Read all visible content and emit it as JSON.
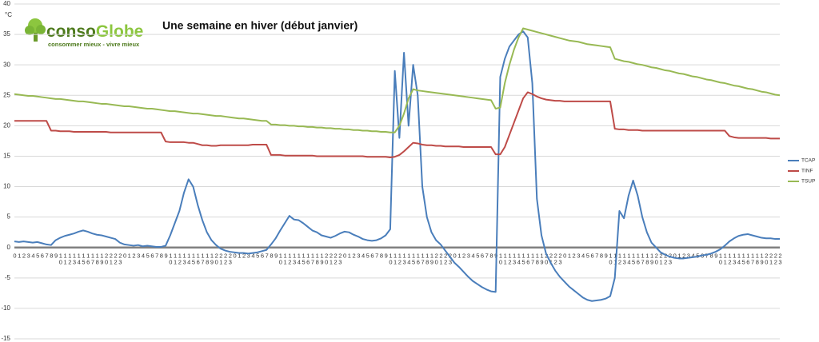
{
  "brand": {
    "name_part1": "conso",
    "name_part2": "Globe",
    "tagline": "consommer mieux - vivre mieux"
  },
  "chart_data": {
    "type": "line",
    "title": "Une semaine en hiver (début janvier)",
    "y_label": "°C",
    "categories": [
      "0",
      "1",
      "2",
      "3",
      "4",
      "5",
      "6",
      "7",
      "8",
      "9",
      "10",
      "11",
      "12",
      "13",
      "14",
      "15",
      "16",
      "17",
      "18",
      "19",
      "20",
      "21",
      "22",
      "23",
      "0",
      "1",
      "2",
      "3",
      "4",
      "5",
      "6",
      "7",
      "8",
      "9",
      "10",
      "11",
      "12",
      "13",
      "14",
      "15",
      "16",
      "17",
      "18",
      "19",
      "20",
      "21",
      "22",
      "23",
      "0",
      "1",
      "2",
      "3",
      "4",
      "5",
      "6",
      "7",
      "8",
      "9",
      "10",
      "11",
      "12",
      "13",
      "14",
      "15",
      "16",
      "17",
      "18",
      "19",
      "20",
      "21",
      "22",
      "23",
      "0",
      "1",
      "2",
      "3",
      "4",
      "5",
      "6",
      "7",
      "8",
      "9",
      "10",
      "11",
      "12",
      "13",
      "14",
      "15",
      "16",
      "17",
      "18",
      "19",
      "20",
      "21",
      "22",
      "23",
      "0",
      "1",
      "2",
      "3",
      "4",
      "5",
      "6",
      "7",
      "8",
      "9",
      "10",
      "11",
      "12",
      "13",
      "14",
      "15",
      "16",
      "17",
      "18",
      "19",
      "20",
      "21",
      "22",
      "23",
      "0",
      "1",
      "2",
      "3",
      "4",
      "5",
      "6",
      "7",
      "8",
      "9",
      "10",
      "11",
      "12",
      "13",
      "14",
      "15",
      "16",
      "17",
      "18",
      "19",
      "20",
      "21",
      "22",
      "23",
      "0",
      "1",
      "2",
      "3",
      "4",
      "5",
      "6",
      "7",
      "8",
      "9",
      "10",
      "11",
      "12",
      "13",
      "14",
      "15",
      "16",
      "17",
      "18",
      "19",
      "20",
      "21",
      "22",
      "23"
    ],
    "series": [
      {
        "name": "TCAP",
        "color": "#4a7ebb",
        "values": [
          1.0,
          0.9,
          1.0,
          0.9,
          0.8,
          0.9,
          0.7,
          0.5,
          0.4,
          1.2,
          1.6,
          1.9,
          2.1,
          2.3,
          2.6,
          2.8,
          2.6,
          2.3,
          2.1,
          2.0,
          1.8,
          1.6,
          1.4,
          0.8,
          0.5,
          0.4,
          0.3,
          0.4,
          0.2,
          0.3,
          0.2,
          0.1,
          0.1,
          0.3,
          2.0,
          4.0,
          6.0,
          9.0,
          11.2,
          10.0,
          7.0,
          4.5,
          2.5,
          1.2,
          0.4,
          -0.2,
          -0.5,
          -0.7,
          -0.8,
          -0.9,
          -0.9,
          -1.0,
          -0.9,
          -0.8,
          -0.6,
          -0.4,
          0.5,
          1.5,
          2.8,
          4.0,
          5.2,
          4.6,
          4.5,
          4.0,
          3.4,
          2.8,
          2.5,
          2.0,
          1.8,
          1.6,
          1.9,
          2.3,
          2.6,
          2.5,
          2.1,
          1.8,
          1.4,
          1.2,
          1.1,
          1.2,
          1.5,
          2.0,
          3.0,
          29.0,
          18.0,
          32.0,
          20.0,
          30.0,
          25.0,
          10.0,
          5.0,
          2.5,
          1.2,
          0.5,
          -0.5,
          -1.5,
          -2.5,
          -3.2,
          -4.0,
          -4.8,
          -5.5,
          -6.0,
          -6.5,
          -6.9,
          -7.2,
          -7.3,
          28.0,
          31.0,
          33.0,
          34.0,
          35.0,
          35.5,
          34.5,
          27.0,
          8.0,
          2.0,
          -1.0,
          -2.5,
          -3.8,
          -4.8,
          -5.6,
          -6.4,
          -7.0,
          -7.6,
          -8.2,
          -8.6,
          -8.8,
          -8.7,
          -8.6,
          -8.4,
          -8.0,
          -5.0,
          6.0,
          4.8,
          8.5,
          11.0,
          8.5,
          5.0,
          2.5,
          0.8,
          0.0,
          -0.8,
          -1.2,
          -1.5,
          -1.7,
          -1.8,
          -1.8,
          -1.7,
          -1.6,
          -1.5,
          -1.3,
          -1.2,
          -1.0,
          -0.7,
          -0.3,
          0.3,
          1.0,
          1.5,
          1.9,
          2.1,
          2.2,
          2.0,
          1.8,
          1.6,
          1.5,
          1.5,
          1.4,
          1.4
        ]
      },
      {
        "name": "TINF",
        "color": "#be4b48",
        "values": [
          20.8,
          20.8,
          20.8,
          20.8,
          20.8,
          20.8,
          20.8,
          20.8,
          19.2,
          19.2,
          19.1,
          19.1,
          19.1,
          19.0,
          19.0,
          19.0,
          19.0,
          19.0,
          19.0,
          19.0,
          19.0,
          18.9,
          18.9,
          18.9,
          18.9,
          18.9,
          18.9,
          18.9,
          18.9,
          18.9,
          18.9,
          18.9,
          18.9,
          17.4,
          17.3,
          17.3,
          17.3,
          17.3,
          17.2,
          17.2,
          17.0,
          16.8,
          16.8,
          16.7,
          16.7,
          16.8,
          16.8,
          16.8,
          16.8,
          16.8,
          16.8,
          16.8,
          16.9,
          16.9,
          16.9,
          16.9,
          15.2,
          15.2,
          15.2,
          15.1,
          15.1,
          15.1,
          15.1,
          15.1,
          15.1,
          15.1,
          15.0,
          15.0,
          15.0,
          15.0,
          15.0,
          15.0,
          15.0,
          15.0,
          15.0,
          15.0,
          15.0,
          14.9,
          14.9,
          14.9,
          14.9,
          14.9,
          14.8,
          14.9,
          15.2,
          15.8,
          16.5,
          17.2,
          17.1,
          16.9,
          16.8,
          16.8,
          16.7,
          16.7,
          16.6,
          16.6,
          16.6,
          16.6,
          16.5,
          16.5,
          16.5,
          16.5,
          16.5,
          16.5,
          16.5,
          15.3,
          15.3,
          16.5,
          18.5,
          20.5,
          22.5,
          24.5,
          25.5,
          25.2,
          24.8,
          24.5,
          24.3,
          24.2,
          24.1,
          24.1,
          24.0,
          24.0,
          24.0,
          24.0,
          24.0,
          24.0,
          24.0,
          24.0,
          24.0,
          24.0,
          24.0,
          19.5,
          19.4,
          19.4,
          19.3,
          19.3,
          19.3,
          19.2,
          19.2,
          19.2,
          19.2,
          19.2,
          19.2,
          19.2,
          19.2,
          19.2,
          19.2,
          19.2,
          19.2,
          19.2,
          19.2,
          19.2,
          19.2,
          19.2,
          19.2,
          19.2,
          18.3,
          18.1,
          18.0,
          18.0,
          18.0,
          18.0,
          18.0,
          18.0,
          18.0,
          17.9,
          17.9,
          17.9
        ]
      },
      {
        "name": "TSUP",
        "color": "#98b954",
        "values": [
          25.2,
          25.1,
          25.0,
          24.9,
          24.9,
          24.8,
          24.7,
          24.6,
          24.5,
          24.4,
          24.4,
          24.3,
          24.2,
          24.1,
          24.0,
          24.0,
          23.9,
          23.8,
          23.7,
          23.6,
          23.6,
          23.5,
          23.4,
          23.3,
          23.2,
          23.2,
          23.1,
          23.0,
          22.9,
          22.8,
          22.8,
          22.7,
          22.6,
          22.5,
          22.4,
          22.4,
          22.3,
          22.2,
          22.1,
          22.0,
          22.0,
          21.9,
          21.8,
          21.7,
          21.6,
          21.6,
          21.5,
          21.4,
          21.3,
          21.2,
          21.2,
          21.1,
          21.0,
          20.9,
          20.8,
          20.8,
          20.2,
          20.2,
          20.1,
          20.1,
          20.0,
          20.0,
          19.9,
          19.9,
          19.8,
          19.8,
          19.7,
          19.7,
          19.6,
          19.6,
          19.5,
          19.5,
          19.4,
          19.4,
          19.3,
          19.3,
          19.2,
          19.2,
          19.1,
          19.1,
          19.0,
          19.0,
          18.9,
          18.9,
          20.0,
          22.0,
          24.5,
          26.0,
          25.8,
          25.7,
          25.6,
          25.5,
          25.4,
          25.3,
          25.2,
          25.1,
          25.0,
          24.9,
          24.8,
          24.7,
          24.6,
          24.5,
          24.4,
          24.3,
          24.2,
          22.8,
          23.0,
          27.0,
          30.0,
          32.5,
          34.5,
          36.0,
          35.8,
          35.6,
          35.4,
          35.2,
          35.0,
          34.8,
          34.6,
          34.4,
          34.2,
          34.0,
          33.9,
          33.8,
          33.6,
          33.4,
          33.3,
          33.2,
          33.1,
          33.0,
          32.9,
          31.0,
          30.8,
          30.6,
          30.5,
          30.3,
          30.1,
          30.0,
          29.8,
          29.6,
          29.5,
          29.3,
          29.1,
          29.0,
          28.8,
          28.6,
          28.5,
          28.3,
          28.1,
          28.0,
          27.8,
          27.6,
          27.5,
          27.3,
          27.1,
          27.0,
          26.8,
          26.6,
          26.5,
          26.3,
          26.1,
          26.0,
          25.8,
          25.6,
          25.5,
          25.3,
          25.1,
          25.0
        ]
      }
    ],
    "ylim": [
      -15,
      40
    ],
    "yticks": [
      -15,
      -10,
      -5,
      0,
      5,
      10,
      15,
      20,
      25,
      30,
      35,
      40
    ],
    "grid": true,
    "legend": "right"
  }
}
